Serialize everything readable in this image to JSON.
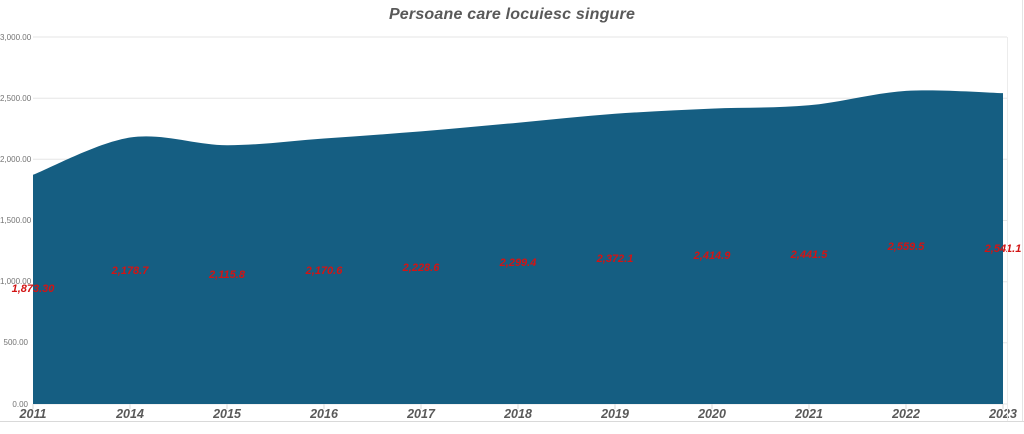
{
  "chart_data": {
    "type": "area",
    "title": "Persoane care locuiesc singure",
    "categories": [
      "2011",
      "2014",
      "2015",
      "2016",
      "2017",
      "2018",
      "2019",
      "2020",
      "2021",
      "2022",
      "2023"
    ],
    "series": [
      {
        "name": "Persoane care locuiesc singure",
        "values": [
          1873.3,
          2178.7,
          2115.8,
          2170.6,
          2228.6,
          2299.4,
          2372.1,
          2414.9,
          2441.5,
          2559.5,
          2541.1
        ],
        "data_labels": [
          "1,873.30",
          "2,178.7",
          "2,115.8",
          "2,170.6",
          "2,228.6",
          "2,299.4",
          "2,372.1",
          "2,414.9",
          "2,441.5",
          "2,559.5",
          "2,541.1"
        ]
      }
    ],
    "xlabel": "",
    "ylabel": "",
    "ylim": [
      0,
      3000
    ],
    "y_tick_step": 500,
    "y_tick_labels": [
      "0.00",
      "500.00",
      "1,000.00",
      "1,500.00",
      "2,000.00",
      "2,500.00",
      "3,000.00"
    ],
    "grid": "horizontal",
    "legend": "none",
    "smooth_line": true,
    "label_position": "center",
    "colors": {
      "area_fill": "#155e82",
      "data_label": "#d21414",
      "axis_text": "#595959",
      "y_axis_text": "#737373",
      "gridline": "#e5e5e5",
      "tick_mark": "#d9d9d9",
      "chart_border": "#d9d9d9"
    }
  }
}
